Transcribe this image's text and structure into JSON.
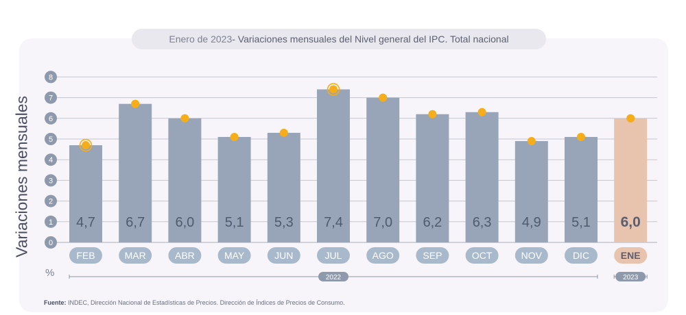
{
  "header": {
    "title_date": "Enero de 2023",
    "title_text": " - Variaciones mensuales del Nivel general del IPC. Total nacional"
  },
  "unit": "%",
  "source": {
    "label": "Fuente:",
    "text": " INDEC, Dirección Nacional de Estadísticas de Precios. Dirección de Índices de Precios de Consumo."
  },
  "colors": {
    "bar": "#98a5b8",
    "bar_highlight": "#e8c3ae",
    "marker": "#f5ad1a",
    "tick_badge": "#8e99ab",
    "category_pill": "#a9b9cc",
    "category_pill_highlight": "#e8c3ae",
    "grid": "#c3c7d0"
  },
  "chart_data": {
    "type": "bar",
    "title": "Enero de 2023 - Variaciones mensuales del Nivel general del IPC. Total nacional",
    "ylabel": "Variaciones mensuales",
    "yunit": "%",
    "ylim": [
      0,
      8
    ],
    "yticks": [
      0,
      1,
      2,
      3,
      4,
      5,
      6,
      7,
      8
    ],
    "grid": true,
    "categories": [
      "FEB",
      "MAR",
      "ABR",
      "MAY",
      "JUN",
      "JUL",
      "AGO",
      "SEP",
      "OCT",
      "NOV",
      "DIC",
      "ENE"
    ],
    "values": [
      4.7,
      6.7,
      6.0,
      5.1,
      5.3,
      7.4,
      7.0,
      6.2,
      6.3,
      4.9,
      5.1,
      6.0
    ],
    "value_labels": [
      "4,7",
      "6,7",
      "6,0",
      "5,1",
      "5,3",
      "7,4",
      "7,0",
      "6,2",
      "6,3",
      "4,9",
      "5,1",
      "6,0"
    ],
    "highlight_index": 11,
    "ringed_markers": [
      0,
      5
    ],
    "year_groups": [
      {
        "label": "2022",
        "from": 0,
        "to": 10
      },
      {
        "label": "2023",
        "from": 11,
        "to": 11
      }
    ]
  }
}
